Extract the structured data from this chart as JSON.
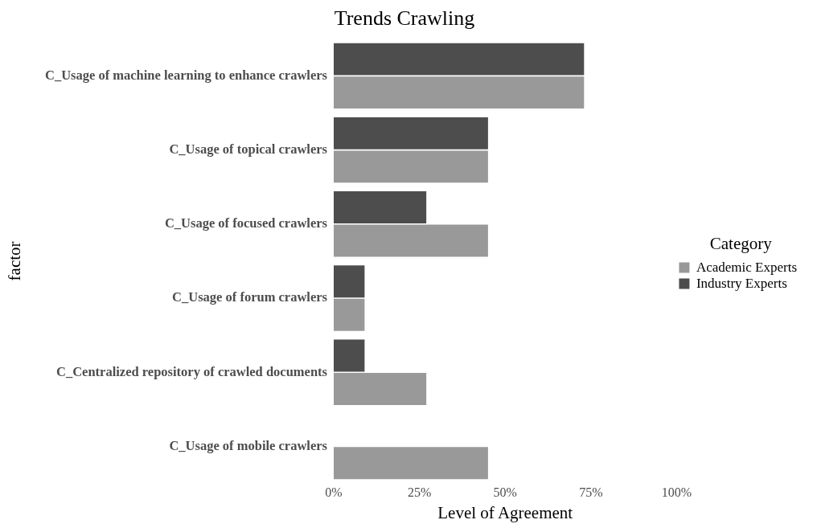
{
  "chart_data": {
    "type": "bar",
    "orientation": "horizontal",
    "title": "Trends Crawling",
    "xlabel": "Level of Agreement",
    "ylabel": "factor",
    "legend_title": "Category",
    "legend": "right",
    "grid": false,
    "categories": [
      "C_Usage of machine learning to enhance crawlers",
      "C_Usage of topical crawlers",
      "C_Usage of focused crawlers",
      "C_Usage of forum crawlers",
      "C_Centralized repository of crawled documents",
      "C_Usage of mobile crawlers"
    ],
    "series": [
      {
        "name": "Academic Experts",
        "color": "#999999",
        "values": [
          73,
          45,
          45,
          9,
          27,
          45
        ]
      },
      {
        "name": "Industry Experts",
        "color": "#4d4d4d",
        "values": [
          73,
          45,
          27,
          9,
          9,
          0
        ]
      }
    ],
    "xlim": [
      0,
      100
    ],
    "xticks": [
      {
        "value": 0,
        "label": "0%"
      },
      {
        "value": 25,
        "label": "25%"
      },
      {
        "value": 50,
        "label": "50%"
      },
      {
        "value": 75,
        "label": "75%"
      },
      {
        "value": 100,
        "label": "100%"
      }
    ]
  }
}
